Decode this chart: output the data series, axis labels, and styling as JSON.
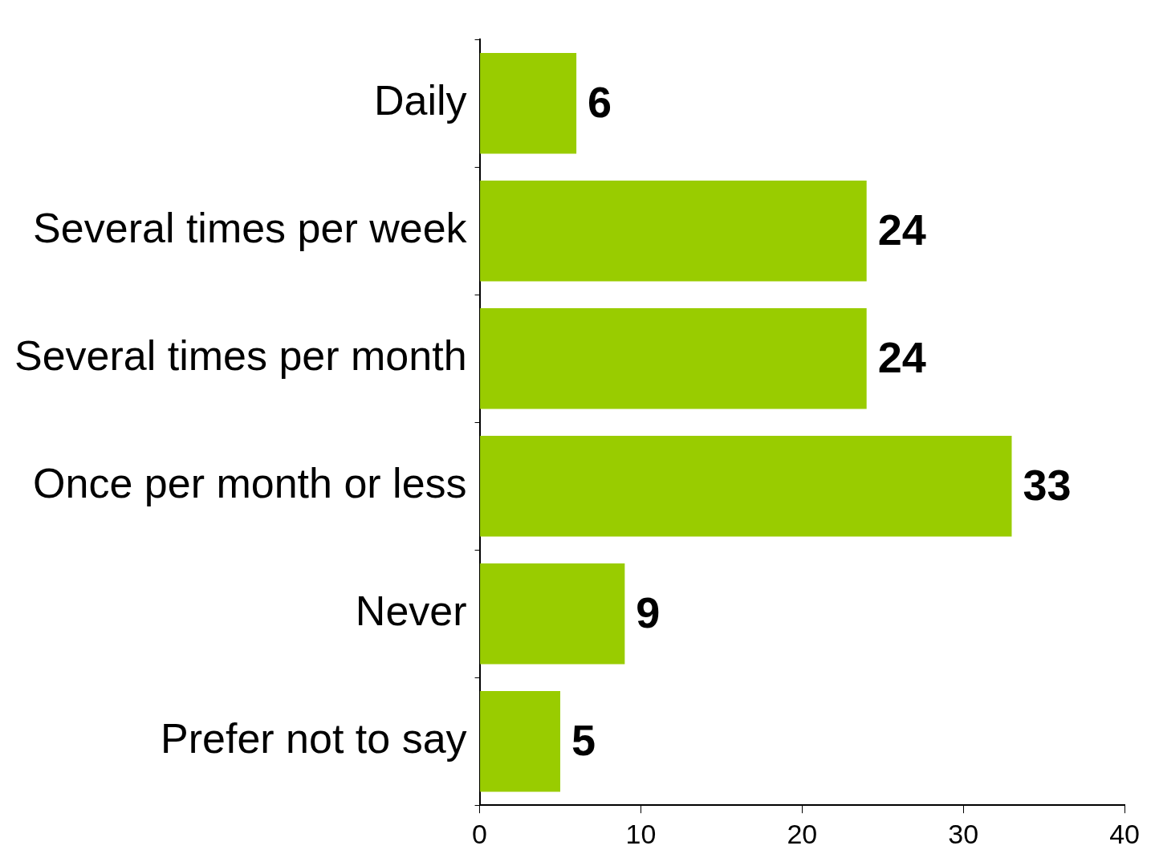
{
  "chart_data": {
    "type": "bar",
    "orientation": "horizontal",
    "categories": [
      "Daily",
      "Several times per week",
      "Several times per month",
      "Once per month or less",
      "Never",
      "Prefer not to say"
    ],
    "values": [
      6,
      24,
      24,
      33,
      9,
      5
    ],
    "color": "#99cc00",
    "xlim": [
      0,
      40
    ],
    "xticks": [
      0,
      10,
      20,
      30,
      40
    ],
    "grid": false,
    "legend": false,
    "data_labels": true
  }
}
